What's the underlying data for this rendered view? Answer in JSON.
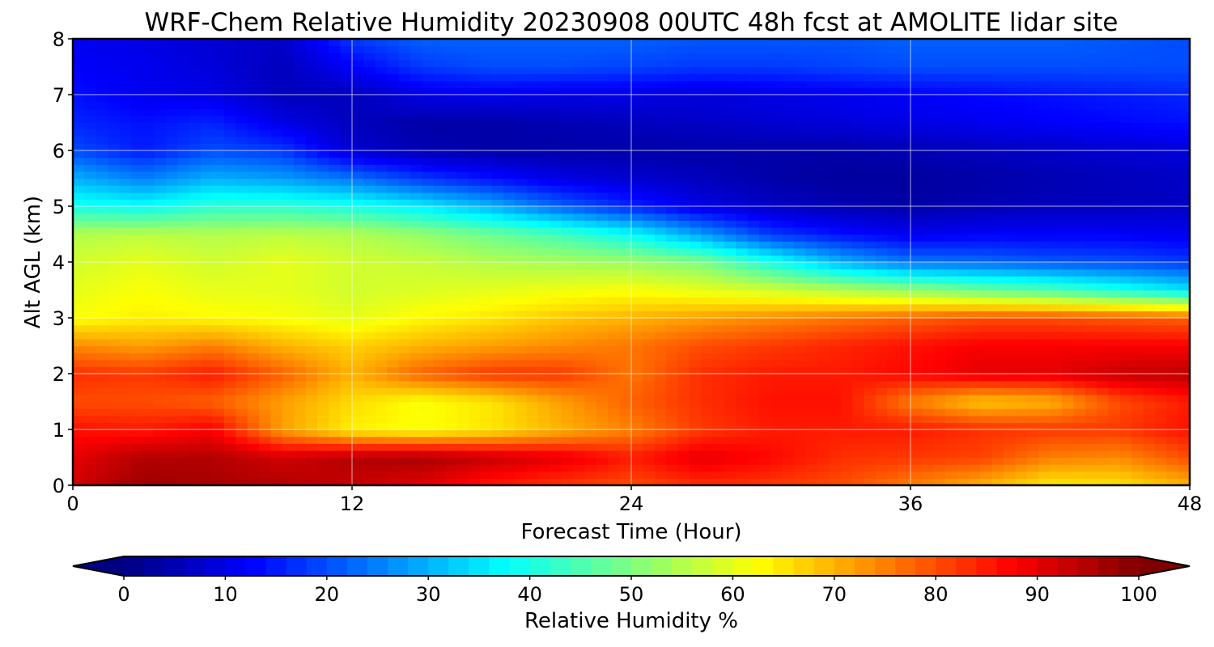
{
  "chart_data": {
    "type": "heatmap",
    "title": "WRF-Chem Relative Humidity 20230908 00UTC 48h fcst at AMOLITE lidar site",
    "xlabel": "Forecast Time (Hour)",
    "ylabel": "Alt AGL (km)",
    "xlim": [
      0,
      48
    ],
    "ylim": [
      0,
      8
    ],
    "x_ticks": [
      "0",
      "12",
      "24",
      "36",
      "48"
    ],
    "y_ticks": [
      "0",
      "1",
      "2",
      "3",
      "4",
      "5",
      "6",
      "7",
      "8"
    ],
    "grid": true,
    "colormap": "jet",
    "colorbar": {
      "label": "Relative Humidity %",
      "range": [
        0,
        100
      ],
      "ticks": [
        "0",
        "10",
        "20",
        "30",
        "40",
        "50",
        "60",
        "70",
        "80",
        "90",
        "100"
      ],
      "extend": "both",
      "orientation": "horizontal",
      "placement": "bottom"
    },
    "x": [
      0,
      3,
      6,
      9,
      12,
      15,
      18,
      21,
      24,
      27,
      30,
      33,
      36,
      39,
      42,
      45,
      48
    ],
    "y": [
      0,
      0.5,
      1,
      1.5,
      2,
      2.5,
      3,
      3.5,
      4,
      4.5,
      5,
      5.5,
      6,
      6.5,
      7,
      7.5,
      8
    ],
    "z": [
      [
        92,
        97,
        96,
        95,
        93,
        90,
        85,
        82,
        80,
        83,
        82,
        80,
        75,
        70,
        64,
        65,
        70
      ],
      [
        90,
        95,
        95,
        92,
        95,
        96,
        93,
        90,
        85,
        90,
        87,
        83,
        82,
        81,
        75,
        74,
        80
      ],
      [
        86,
        85,
        88,
        72,
        64,
        62,
        65,
        70,
        75,
        82,
        85,
        85,
        85,
        83,
        82,
        82,
        86
      ],
      [
        80,
        80,
        78,
        72,
        66,
        62,
        65,
        72,
        78,
        83,
        86,
        86,
        75,
        68,
        70,
        80,
        85
      ],
      [
        83,
        82,
        85,
        78,
        70,
        78,
        82,
        82,
        76,
        83,
        85,
        85,
        87,
        90,
        90,
        93,
        94
      ],
      [
        74,
        72,
        75,
        70,
        67,
        70,
        72,
        74,
        76,
        80,
        82,
        84,
        86,
        88,
        88,
        88,
        88
      ],
      [
        62,
        64,
        63,
        62,
        60,
        63,
        65,
        68,
        70,
        72,
        74,
        76,
        78,
        80,
        80,
        79,
        78
      ],
      [
        60,
        62,
        60,
        60,
        58,
        59,
        60,
        61,
        62,
        60,
        58,
        55,
        52,
        48,
        45,
        40,
        35
      ],
      [
        58,
        60,
        58,
        60,
        58,
        57,
        55,
        54,
        53,
        50,
        40,
        30,
        24,
        23,
        21,
        20,
        18
      ],
      [
        55,
        56,
        55,
        56,
        55,
        52,
        48,
        44,
        38,
        28,
        18,
        14,
        11,
        12,
        12,
        12,
        11
      ],
      [
        40,
        38,
        42,
        42,
        40,
        36,
        30,
        22,
        16,
        10,
        7,
        5,
        4,
        5,
        6,
        6,
        7
      ],
      [
        30,
        25,
        30,
        28,
        24,
        18,
        14,
        10,
        8,
        6,
        4,
        3,
        3,
        4,
        5,
        6,
        7
      ],
      [
        20,
        15,
        20,
        18,
        8,
        5,
        4,
        4,
        4,
        4,
        4,
        4,
        5,
        6,
        7,
        8,
        9
      ],
      [
        16,
        14,
        16,
        10,
        6,
        4,
        4,
        5,
        6,
        7,
        8,
        9,
        10,
        11,
        12,
        13,
        14
      ],
      [
        14,
        11,
        10,
        6,
        6,
        10,
        11,
        10,
        10,
        9,
        10,
        11,
        12,
        13,
        14,
        15,
        16
      ],
      [
        12,
        11,
        9,
        6,
        12,
        18,
        20,
        20,
        19,
        18,
        18,
        19,
        20,
        20,
        20,
        20,
        20
      ],
      [
        11,
        10,
        8,
        7,
        18,
        22,
        22,
        22,
        22,
        21,
        21,
        21,
        22,
        22,
        22,
        21,
        20
      ]
    ]
  }
}
